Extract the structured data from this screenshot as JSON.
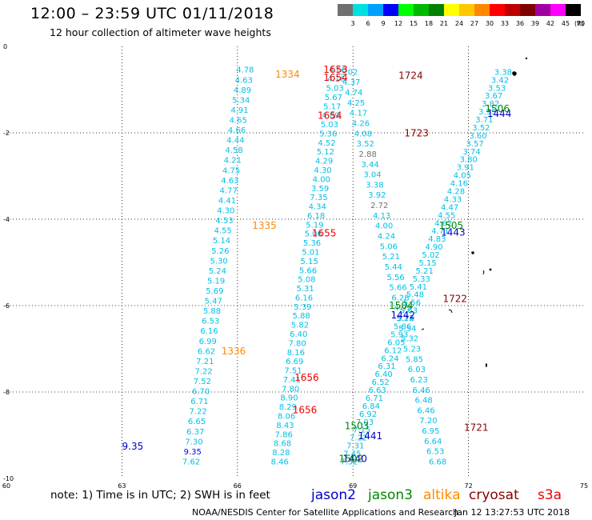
{
  "header": {
    "title": "12:00 – 23:59 UTC 01/11/2018",
    "subtitle": "12 hour collection of altimeter wave heights"
  },
  "colorbar": {
    "ticks": [
      "3",
      "6",
      "9",
      "12",
      "15",
      "18",
      "21",
      "24",
      "27",
      "30",
      "33",
      "36",
      "39",
      "42",
      "45",
      "70"
    ],
    "unit": "(ft)",
    "colors": [
      "#707070",
      "#00e0e0",
      "#00a0ff",
      "#0000ff",
      "#00ff00",
      "#00b800",
      "#008000",
      "#ffff00",
      "#ffc800",
      "#ff8800",
      "#ff0000",
      "#c00000",
      "#800000",
      "#a000a0",
      "#ff00ff",
      "#000000"
    ]
  },
  "chart_data": {
    "type": "scatter",
    "xlim": [
      60,
      75
    ],
    "ylim": [
      -10,
      0
    ],
    "x_ticks": [
      "60",
      "63",
      "66",
      "69",
      "72",
      "75"
    ],
    "y_ticks": [
      "0",
      "-2",
      "-4",
      "-6",
      "-8",
      "-10"
    ],
    "grid": "dotted",
    "series": [
      {
        "name": "jason2",
        "color": "#0000cc",
        "points": [
          {
            "x": 63.28,
            "y": -9.26,
            "label": "9.35"
          },
          {
            "x": 69.45,
            "y": -9.02,
            "label": "1441"
          },
          {
            "x": 72.8,
            "y": -1.56,
            "label": "1444"
          },
          {
            "x": 71.6,
            "y": -4.31,
            "label": "1443"
          },
          {
            "x": 70.3,
            "y": -6.22,
            "label": "1442"
          },
          {
            "x": 69.05,
            "y": -9.55,
            "label": "1440"
          }
        ]
      },
      {
        "name": "jason3",
        "color": "#008800",
        "points": [
          {
            "x": 72.75,
            "y": -1.44,
            "label": "1506"
          },
          {
            "x": 71.55,
            "y": -4.15,
            "label": "1505"
          },
          {
            "x": 70.25,
            "y": -6.0,
            "label": "1504"
          },
          {
            "x": 69.1,
            "y": -8.79,
            "label": "1503"
          },
          {
            "x": 68.95,
            "y": -9.55,
            "label": "1502"
          }
        ]
      },
      {
        "name": "altika",
        "color": "#ff8800",
        "points": [
          {
            "x": 67.3,
            "y": -0.65,
            "label": "1334"
          },
          {
            "x": 66.7,
            "y": -4.15,
            "label": "1335"
          },
          {
            "x": 65.9,
            "y": -7.06,
            "label": "1336"
          }
        ]
      },
      {
        "name": "cryosat",
        "color": "#880000",
        "points": [
          {
            "x": 70.5,
            "y": -0.68,
            "label": "1724"
          },
          {
            "x": 70.65,
            "y": -2.01,
            "label": "1723"
          },
          {
            "x": 71.65,
            "y": -5.84,
            "label": "1722"
          },
          {
            "x": 72.2,
            "y": -8.82,
            "label": "1721"
          }
        ]
      },
      {
        "name": "s3a",
        "color": "#ee0000",
        "points": [
          {
            "x": 68.55,
            "y": -0.54,
            "label": "1653"
          },
          {
            "x": 68.55,
            "y": -0.72,
            "label": "1654"
          },
          {
            "x": 68.4,
            "y": -1.6,
            "label": "1654"
          },
          {
            "x": 68.25,
            "y": -4.32,
            "label": "1655"
          },
          {
            "x": 67.8,
            "y": -7.67,
            "label": "1656"
          },
          {
            "x": 67.75,
            "y": -8.42,
            "label": "1656"
          }
        ]
      }
    ],
    "tracks": [
      {
        "name": "altika-track",
        "color": "#00bfe6",
        "start": [
          66.2,
          -0.55
        ],
        "end": [
          64.8,
          -9.62
        ],
        "values": [
          "4.78",
          "4.63",
          "4.89",
          "5.34",
          "4.91",
          "4.65",
          "4.66",
          "4.44",
          "4.58",
          "4.21",
          "4.75",
          "4.63",
          "4.77",
          "4.41",
          "4.30",
          "4.53",
          "4.55",
          "5.14",
          "5.26",
          "5.30",
          "5.24",
          "5.19",
          "5.69",
          "5.47",
          "5.88",
          "6.53",
          "6.16",
          "6.99",
          "6.62",
          "7.21",
          "7.22",
          "7.52",
          "6.70",
          "6.71",
          "7.22",
          "6.65",
          "6.37",
          "7.30",
          "9.35",
          "7.62"
        ]
      },
      {
        "name": "s3a-track",
        "color": "#00bfe6",
        "start": [
          68.6,
          -0.55
        ],
        "end": [
          67.1,
          -9.62
        ],
        "values": [
          "4.66",
          "4.16",
          "5.03",
          "5.67",
          "5.17",
          "4.89",
          "5.03",
          "5.36",
          "4.52",
          "5.12",
          "4.29",
          "4.30",
          "4.00",
          "3.59",
          "7.35",
          "4.34",
          "6.18",
          "5.19",
          "5.06",
          "5.36",
          "5.01",
          "5.15",
          "5.66",
          "5.08",
          "5.31",
          "6.16",
          "5.39",
          "5.88",
          "5.82",
          "6.40",
          "7.80",
          "8.16",
          "6.69",
          "7.51",
          "7.41",
          "7.80",
          "8.90",
          "8.29",
          "8.06",
          "8.43",
          "7.86",
          "8.68",
          "8.28",
          "8.46"
        ]
      },
      {
        "name": "cryosat-track",
        "color": "#00bfe6",
        "start": [
          68.9,
          -0.6
        ],
        "end": [
          71.2,
          -9.62
        ],
        "values": [
          "5.02",
          "4.37",
          "4.74",
          "4.25",
          "4.17",
          "4.26",
          "4.08",
          "3.52",
          "2.88",
          "3.44",
          "3.04",
          "3.38",
          "3.92",
          "2.72",
          "4.13",
          "4.00",
          "4.24",
          "5.06",
          "5.21",
          "5.44",
          "5.56",
          "5.66",
          "6.28",
          "4.99",
          "5.22",
          "5.54",
          "5.32",
          "5.23",
          "5.85",
          "6.03",
          "6.23",
          "6.46",
          "6.48",
          "6.46",
          "7.20",
          "6.95",
          "6.64",
          "6.53",
          "6.68"
        ]
      },
      {
        "name": "jason-track",
        "color": "#00bfe6",
        "start": [
          72.9,
          -0.6
        ],
        "end": [
          68.9,
          -9.62
        ],
        "values": [
          "3.38",
          "3.42",
          "3.53",
          "3.67",
          "3.82",
          "3.95",
          "3.71",
          "3.52",
          "3.60",
          "3.57",
          "3.74",
          "3.80",
          "3.91",
          "4.05",
          "4.16",
          "4.28",
          "4.33",
          "4.47",
          "4.55",
          "4.62",
          "4.71",
          "4.83",
          "4.90",
          "5.02",
          "5.15",
          "5.21",
          "5.33",
          "5.41",
          "5.48",
          "5.56",
          "5.63",
          "5.74",
          "5.86",
          "5.93",
          "6.05",
          "6.12",
          "6.24",
          "6.31",
          "6.40",
          "6.52",
          "6.63",
          "6.71",
          "6.84",
          "6.92",
          "7.03",
          "7.15",
          "7.22",
          "7.31",
          "7.45",
          "7.52"
        ]
      }
    ]
  },
  "note": "note: 1) Time is in UTC; 2) SWH is in feet",
  "legend": [
    {
      "label": "jason2",
      "color": "#0000cc"
    },
    {
      "label": "jason3",
      "color": "#008800"
    },
    {
      "label": "altika",
      "color": "#ff8800"
    },
    {
      "label": "cryosat",
      "color": "#880000"
    },
    {
      "label": "s3a",
      "color": "#ee0000"
    }
  ],
  "footer": {
    "left": "NOAA/NESDIS Center for Satellite Applications and Research",
    "right": "Jan 12 13:27:53 UTC 2018"
  }
}
